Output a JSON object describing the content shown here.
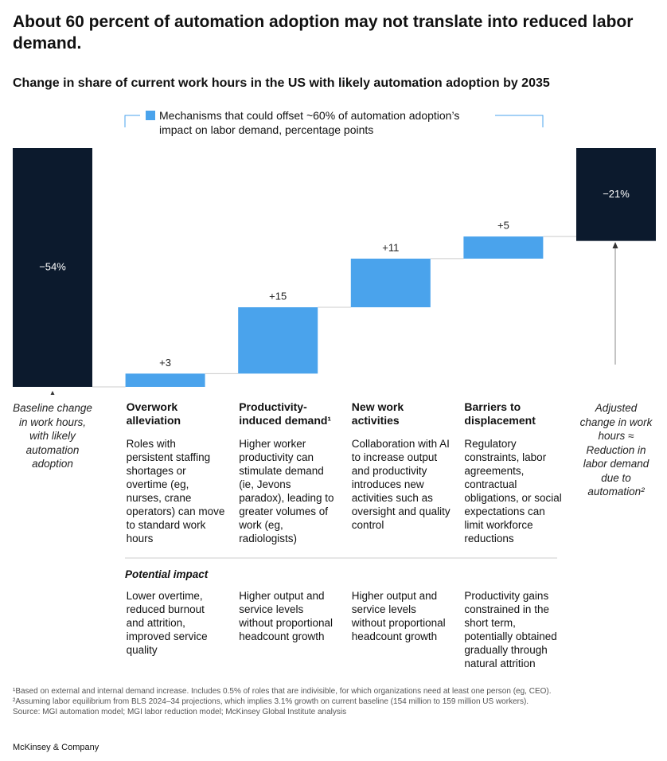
{
  "chart_data": {
    "type": "waterfall",
    "title": "About 60 percent of automation adoption may not translate into reduced labor demand.",
    "subtitle": "Change in share of current work hours in the US with likely automation adoption by 2035",
    "legend": "Mechanisms that could offset ~60% of automation adoption’s impact on labor demand, percentage points",
    "categories": [
      "Baseline change in work hours, with likely automation adoption",
      "Overwork alleviation",
      "Productivity-induced demand¹",
      "New work activities",
      "Barriers to displacement",
      "Adjusted change in work hours ≈ Reduction in labor demand due to automation²"
    ],
    "values": [
      -54,
      3,
      15,
      11,
      5,
      -21
    ],
    "value_labels": [
      "−54%",
      "+3",
      "+15",
      "+11",
      "+5",
      "−21%"
    ],
    "colors": {
      "total": "#0c1a2d",
      "change": "#4aa3ec"
    },
    "descriptions": [
      "Roles with persistent staffing shortages or overtime (eg, nurses, crane operators) can move to standard work hours",
      "Higher worker productivity can stimulate demand (ie, Jevons paradox), leading to greater volumes of work (eg, radiologists)",
      "Collaboration with AI to increase output and productivity introduces new activities such as oversight and quality control",
      "Regulatory constraints, labor agreements, contractual obligations, or social expectations can limit workforce reductions"
    ],
    "impact_heading": "Potential impact",
    "impacts": [
      "Lower overtime, reduced burnout and attrition, improved service quality",
      "Higher output and service levels without proportional headcount growth",
      "Higher output and service levels without proportional headcount growth",
      "Productivity gains constrained in the short term, potentially obtained gradually through natural attrition"
    ],
    "footnotes": [
      "¹Based on external and internal demand increase. Includes 0.5% of roles that are indivisible, for which organizations need at least one person (eg, CEO).",
      "²Assuming labor equilibrium from BLS 2024–34 projections, which implies 3.1% growth on current baseline (154 million to 159 million US workers).",
      "Source: MGI automation model; MGI labor reduction model; McKinsey Global Institute analysis"
    ],
    "brand": "McKinsey & Company"
  }
}
